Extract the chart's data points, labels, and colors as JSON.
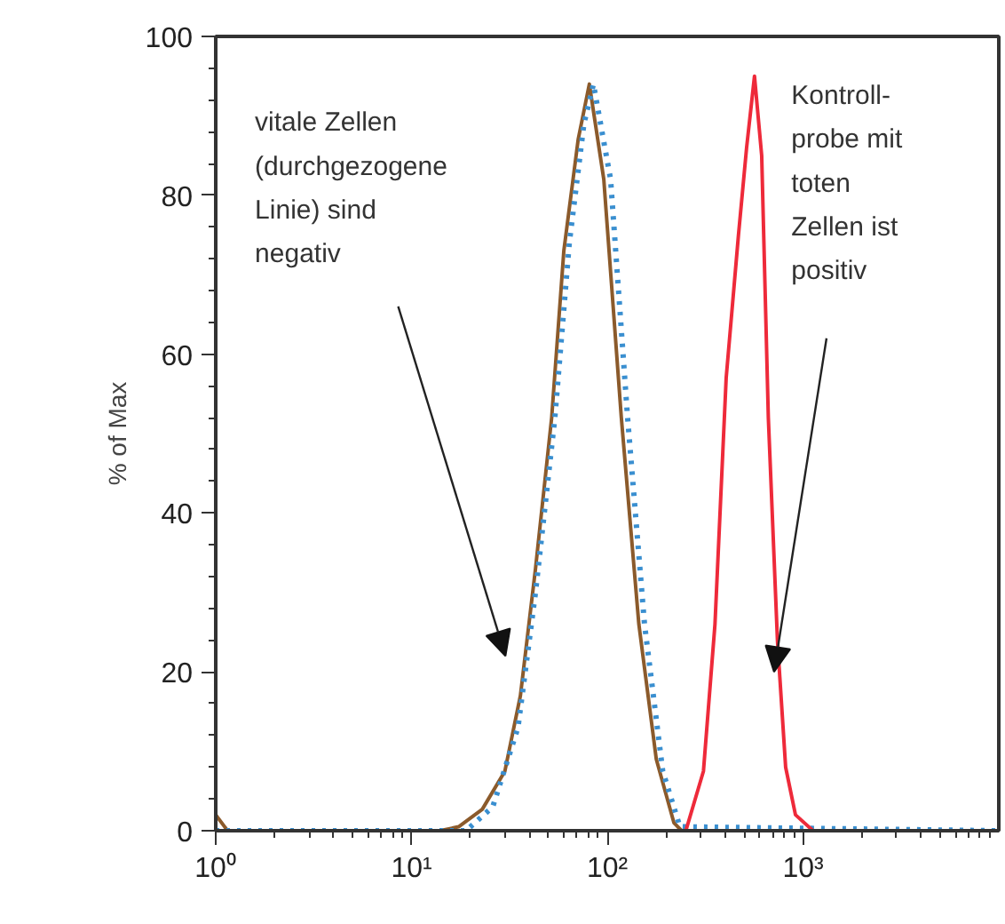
{
  "chart_data": {
    "type": "line",
    "ylabel": "% of Max",
    "log": "x",
    "grid": false,
    "marker": "none",
    "xlim": [
      1,
      10000
    ],
    "xticks": [
      {
        "value": 1,
        "label": "10⁰"
      },
      {
        "value": 10,
        "label": "10¹"
      },
      {
        "value": 100,
        "label": "10²"
      },
      {
        "value": 1000,
        "label": "10³"
      }
    ],
    "ylim": [
      0,
      100
    ],
    "yticks": [
      0,
      20,
      40,
      60,
      80,
      100
    ],
    "series": [
      {
        "color": "#8b5a2b",
        "line_style": "solid",
        "x": [
          1,
          1.15,
          14,
          17.4,
          23,
          30,
          36,
          43,
          52,
          60,
          71,
          81,
          96,
          118,
          145,
          178,
          219,
          240,
          10000
        ],
        "values": [
          2,
          0,
          0,
          0.5,
          2.7,
          7.5,
          17,
          33,
          52,
          73,
          87,
          94,
          82,
          52,
          26,
          9,
          1,
          0,
          0
        ]
      },
      {
        "color": "#3a8fd0",
        "line_style": "dotted",
        "x": [
          1,
          19,
          26,
          35,
          43,
          54,
          64,
          76,
          85,
          104,
          127,
          155,
          192,
          235,
          10000
        ],
        "values": [
          0,
          0,
          3,
          13,
          30,
          52,
          74,
          89,
          94,
          82,
          52,
          26,
          7.5,
          0.5,
          0
        ]
      },
      {
        "color": "#ee2a3a",
        "line_style": "solid",
        "x": [
          1,
          252,
          310,
          355,
          405,
          468,
          515,
          565,
          615,
          665,
          740,
          815,
          915,
          1125,
          10000
        ],
        "values": [
          0,
          0,
          7.5,
          26,
          57,
          75,
          86,
          95,
          85,
          52,
          24,
          8,
          2,
          0,
          0
        ]
      }
    ],
    "annotations": [
      "vitale Zellen\n(durchgezogene\nLinie) sind\nnegativ",
      "Kontroll-\nprobe mit\ntoten\nZellen  ist\npositiv"
    ]
  }
}
